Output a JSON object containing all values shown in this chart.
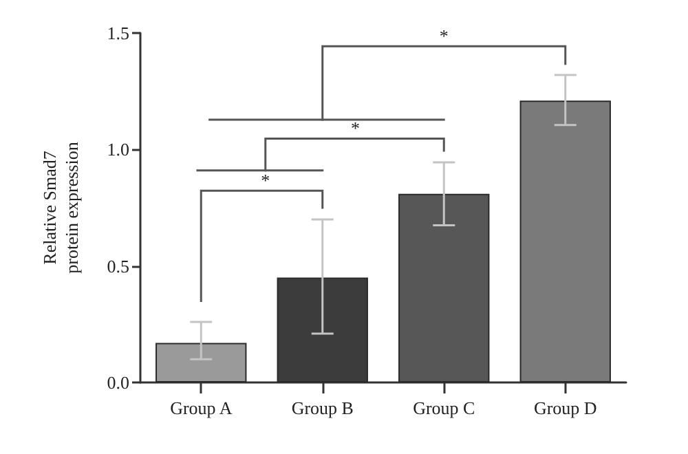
{
  "chart_data": {
    "type": "bar",
    "ylabel": "Relative Smad7\nprotein expression",
    "categories": [
      "Group A",
      "Group B",
      "Group C",
      "Group D"
    ],
    "values": [
      0.17,
      0.45,
      0.81,
      1.21
    ],
    "colors": [
      "#9a9a9a",
      "#3c3c3c",
      "#575757",
      "#7a7a7a"
    ],
    "errors": [
      [
        0.1,
        0.26
      ],
      [
        0.21,
        0.7
      ],
      [
        0.675,
        0.945
      ],
      [
        1.105,
        1.32
      ]
    ],
    "ylim": [
      0,
      1.5
    ],
    "yticks": [
      {
        "value": 0,
        "label": "0.0"
      },
      0.5,
      {
        "value": 1,
        "label": "1.0"
      },
      1.5
    ],
    "annotations": [
      "*",
      "*",
      "*"
    ],
    "grid": false
  }
}
